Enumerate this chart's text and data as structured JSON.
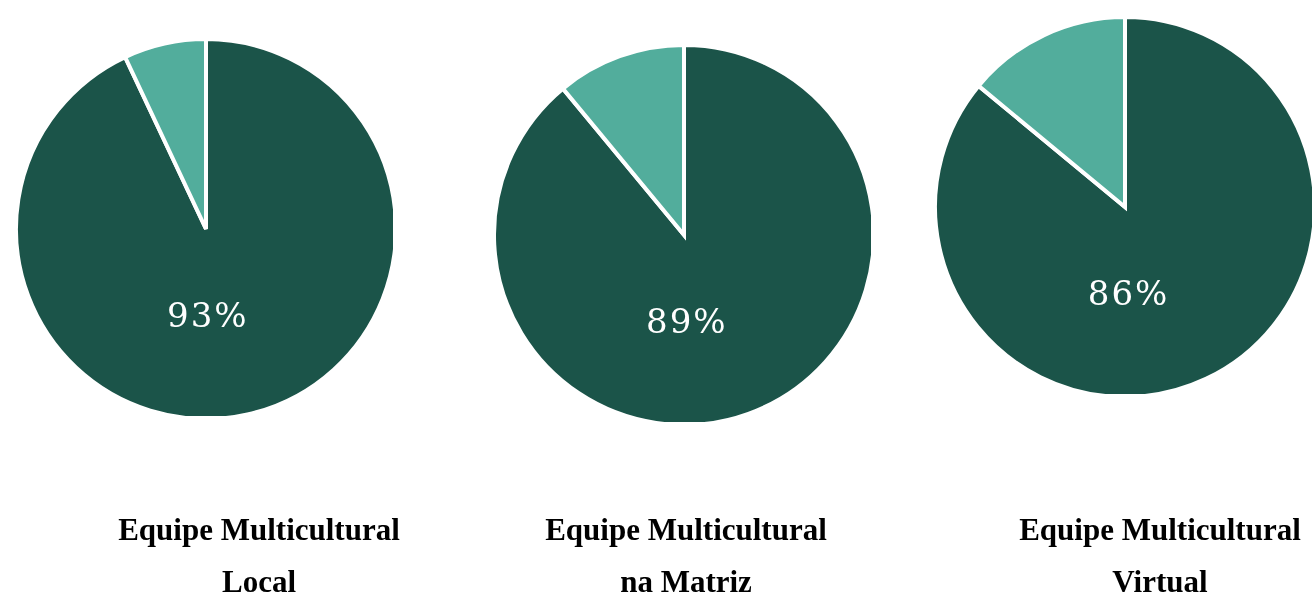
{
  "chart_data": [
    {
      "type": "pie",
      "title": "Equipe Multicultural Local",
      "categories": [
        null,
        null
      ],
      "values": [
        93,
        7
      ],
      "colors": [
        "#1b5449",
        "#52ad9c"
      ],
      "value_labels": [
        "93%",
        null
      ]
    },
    {
      "type": "pie",
      "title": "Equipe Multicultural na Matriz",
      "categories": [
        null,
        null
      ],
      "values": [
        89,
        11
      ],
      "colors": [
        "#1b5449",
        "#52ad9c"
      ],
      "value_labels": [
        "89%",
        null
      ]
    },
    {
      "type": "pie",
      "title": "Equipe Multicultural Virtual",
      "categories": [
        null,
        null
      ],
      "values": [
        86,
        14
      ],
      "colors": [
        "#1b5449",
        "#52ad9c"
      ],
      "value_labels": [
        "86%",
        null
      ]
    }
  ]
}
